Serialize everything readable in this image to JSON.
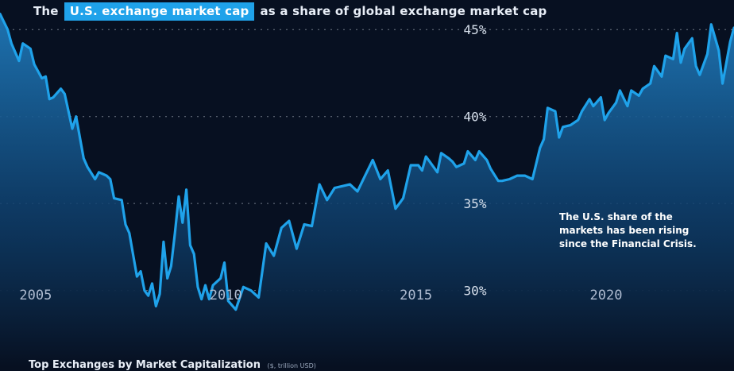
{
  "title": {
    "prefix": "The",
    "highlight": "U.S. exchange market cap",
    "suffix": "as a share of global exchange market cap"
  },
  "annotation": "The U.S. share of the markets has been rising since the Financial Crisis.",
  "subheading": {
    "text": "Top Exchanges by Market Capitalization",
    "note": "($, trillion USD)"
  },
  "colors": {
    "background": "#071021",
    "line": "#1fa2ea",
    "highlight": "#1fa2ea",
    "grid": "#c8d2e0"
  },
  "chart_data": {
    "type": "area",
    "title": "The U.S. exchange market cap as a share of global exchange market cap",
    "xlabel": "",
    "ylabel": "",
    "xlim": [
      2004.0,
      2023.3
    ],
    "ylim": [
      25.6,
      46.7
    ],
    "xticks": [
      2005,
      2010,
      2015,
      2020
    ],
    "xtick_labels": [
      "2005",
      "2010",
      "2015",
      "2020"
    ],
    "yticks": [
      30,
      35,
      40,
      45
    ],
    "ytick_labels": [
      "30%",
      "35%",
      "40%",
      "45%"
    ],
    "grid": "dotted horizontal",
    "series": [
      {
        "name": "U.S. share of global exchange market cap",
        "x": [
          2004.0,
          2004.2,
          2004.3,
          2004.5,
          2004.6,
          2004.8,
          2004.9,
          2005.1,
          2005.2,
          2005.3,
          2005.4,
          2005.6,
          2005.7,
          2005.9,
          2006.0,
          2006.2,
          2006.3,
          2006.5,
          2006.6,
          2006.8,
          2006.9,
          2007.0,
          2007.2,
          2007.3,
          2007.4,
          2007.6,
          2007.7,
          2007.8,
          2007.9,
          2008.0,
          2008.1,
          2008.2,
          2008.3,
          2008.4,
          2008.5,
          2008.6,
          2008.7,
          2008.8,
          2008.9,
          2009.0,
          2009.1,
          2009.2,
          2009.3,
          2009.4,
          2009.5,
          2009.6,
          2009.8,
          2009.9,
          2010.0,
          2010.2,
          2010.4,
          2010.6,
          2010.8,
          2011.0,
          2011.2,
          2011.4,
          2011.6,
          2011.8,
          2012.0,
          2012.2,
          2012.4,
          2012.6,
          2012.8,
          2013.0,
          2013.2,
          2013.4,
          2013.6,
          2013.8,
          2014.0,
          2014.2,
          2014.4,
          2014.6,
          2014.8,
          2015.0,
          2015.1,
          2015.2,
          2015.3,
          2015.5,
          2015.6,
          2015.8,
          2015.9,
          2016.0,
          2016.2,
          2016.3,
          2016.5,
          2016.6,
          2016.8,
          2016.9,
          2017.1,
          2017.2,
          2017.4,
          2017.6,
          2017.8,
          2018.0,
          2018.2,
          2018.3,
          2018.4,
          2018.6,
          2018.7,
          2018.8,
          2019.0,
          2019.2,
          2019.3,
          2019.5,
          2019.6,
          2019.8,
          2019.9,
          2020.0,
          2020.2,
          2020.3,
          2020.5,
          2020.6,
          2020.8,
          2020.9,
          2021.1,
          2021.2,
          2021.4,
          2021.5,
          2021.7,
          2021.8,
          2021.9,
          2022.0,
          2022.2,
          2022.3,
          2022.4,
          2022.6,
          2022.7,
          2022.9,
          2023.0,
          2023.2,
          2023.3
        ],
        "values": [
          45.9,
          45.0,
          44.2,
          43.2,
          44.2,
          43.9,
          43.0,
          42.2,
          42.3,
          41.0,
          41.1,
          41.6,
          41.3,
          39.3,
          40.0,
          37.6,
          37.1,
          36.4,
          36.8,
          36.6,
          36.4,
          35.3,
          35.2,
          33.8,
          33.3,
          30.8,
          31.1,
          30.0,
          29.7,
          30.4,
          29.1,
          29.8,
          32.8,
          30.7,
          31.4,
          33.3,
          35.4,
          33.9,
          35.8,
          32.6,
          32.1,
          30.2,
          29.5,
          30.3,
          29.5,
          30.3,
          30.7,
          31.6,
          29.4,
          28.9,
          30.2,
          30.0,
          29.6,
          32.7,
          32.0,
          33.6,
          34.0,
          32.4,
          33.8,
          33.7,
          36.1,
          35.2,
          35.9,
          36.0,
          36.1,
          35.7,
          36.6,
          37.5,
          36.4,
          36.9,
          34.7,
          35.3,
          37.2,
          37.2,
          36.9,
          37.7,
          37.4,
          36.8,
          37.9,
          37.6,
          37.4,
          37.1,
          37.3,
          38.0,
          37.5,
          38.0,
          37.5,
          37.0,
          36.3,
          36.3,
          36.4,
          36.6,
          36.6,
          36.4,
          38.2,
          38.7,
          40.5,
          40.3,
          38.8,
          39.4,
          39.5,
          39.8,
          40.3,
          41.0,
          40.6,
          41.1,
          39.8,
          40.2,
          40.8,
          41.5,
          40.6,
          41.5,
          41.2,
          41.6,
          41.9,
          42.9,
          42.3,
          43.5,
          43.3,
          44.8,
          43.1,
          43.9,
          44.5,
          42.9,
          42.4,
          43.6,
          45.3,
          43.8,
          41.9,
          44.3,
          45.1
        ]
      }
    ]
  }
}
